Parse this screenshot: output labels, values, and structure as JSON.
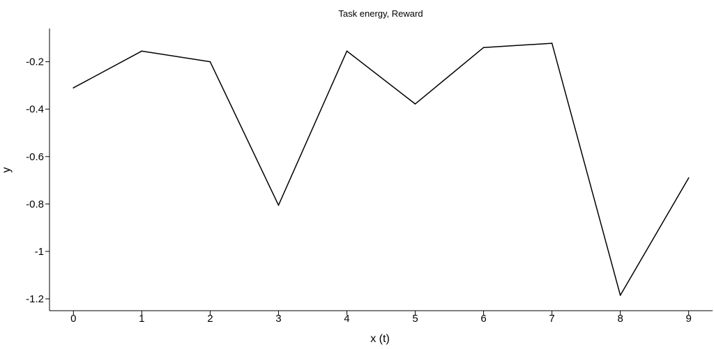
{
  "chart_data": {
    "type": "line",
    "title": "Task energy, Reward",
    "xlabel": "x (t)",
    "ylabel": "y",
    "x": [
      0,
      1,
      2,
      3,
      4,
      5,
      6,
      7,
      8,
      9
    ],
    "series": [
      {
        "values": [
          -0.31,
          -0.155,
          -0.2,
          -0.805,
          -0.155,
          -0.378,
          -0.14,
          -0.122,
          -1.185,
          -0.69
        ]
      }
    ],
    "xticks": [
      "0",
      "1",
      "2",
      "3",
      "4",
      "5",
      "6",
      "7",
      "8",
      "9"
    ],
    "yticks": [
      {
        "value": -0.2,
        "label": "-0.2"
      },
      {
        "value": -0.4,
        "label": "-0.4"
      },
      {
        "value": -0.6,
        "label": "-0.6"
      },
      {
        "value": -0.8,
        "label": "-0.8"
      },
      {
        "value": -1.0,
        "label": "-1"
      },
      {
        "value": -1.2,
        "label": "-1.2"
      }
    ],
    "xlim": [
      -0.35,
      9.35
    ],
    "ylim": [
      -1.25,
      -0.06
    ],
    "grid": false,
    "line_color": "#000000",
    "axis_color": "#000000"
  }
}
